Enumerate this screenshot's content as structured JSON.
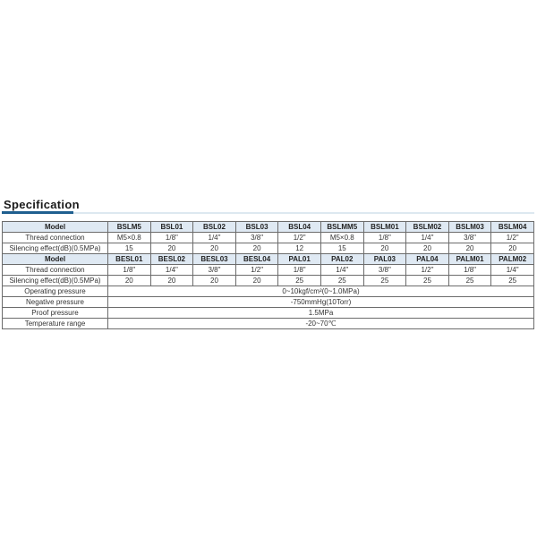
{
  "title": "Specification",
  "colors": {
    "accent": "#1f5f8f",
    "header_bg": "#dfe9f3"
  },
  "labels": {
    "model": "Model",
    "thread": "Thread connection",
    "silencing": "Silencing effect(dB)(0.5MPa)"
  },
  "group1": {
    "models": [
      "BSLM5",
      "BSL01",
      "BSL02",
      "BSL03",
      "BSL04",
      "BSLMM5",
      "BSLM01",
      "BSLM02",
      "BSLM03",
      "BSLM04"
    ],
    "thread": [
      "M5×0.8",
      "1/8\"",
      "1/4\"",
      "3/8\"",
      "1/2\"",
      "M5×0.8",
      "1/8\"",
      "1/4\"",
      "3/8\"",
      "1/2\""
    ],
    "silencing": [
      "15",
      "20",
      "20",
      "20",
      "12",
      "15",
      "20",
      "20",
      "20",
      "20"
    ]
  },
  "group2": {
    "models": [
      "BESL01",
      "BESL02",
      "BESL03",
      "BESL04",
      "PAL01",
      "PAL02",
      "PAL03",
      "PAL04",
      "PALM01",
      "PALM02"
    ],
    "thread": [
      "1/8\"",
      "1/4\"",
      "3/8\"",
      "1/2\"",
      "1/8\"",
      "1/4\"",
      "3/8\"",
      "1/2\"",
      "1/8\"",
      "1/4\""
    ],
    "silencing": [
      "20",
      "20",
      "20",
      "20",
      "25",
      "25",
      "25",
      "25",
      "25",
      "25"
    ]
  },
  "common": [
    {
      "label": "Operating pressure",
      "value": "0~10kgf/cm²(0~1.0MPa)"
    },
    {
      "label": "Negative pressure",
      "value": "-750mmHg(10Torr)"
    },
    {
      "label": "Proof pressure",
      "value": "1.5MPa"
    },
    {
      "label": "Temperature range",
      "value": "-20~70℃"
    }
  ]
}
